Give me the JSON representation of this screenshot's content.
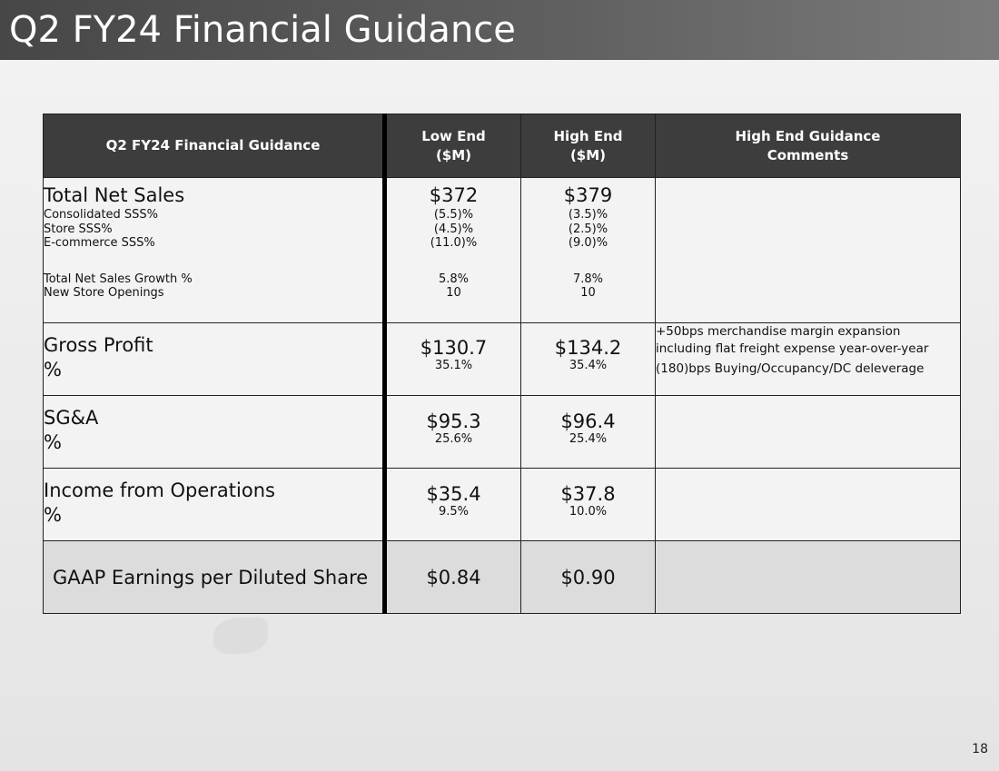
{
  "slide": {
    "title": "Q2 FY24 Financial Guidance",
    "page_number": "18"
  },
  "table": {
    "headers": {
      "metric": "Q2 FY24 Financial Guidance",
      "low_line1": "Low End",
      "low_line2": "($M)",
      "high_line1": "High End",
      "high_line2": "($M)",
      "comments_line1": "High End Guidance",
      "comments_line2": "Comments"
    },
    "net_sales": {
      "label": "Total Net Sales",
      "low": "$372",
      "high": "$379",
      "sub_rows": [
        {
          "label": "Consolidated SSS%",
          "low": "(5.5)%",
          "high": "(3.5)%"
        },
        {
          "label": "Store SSS%",
          "low": "(4.5)%",
          "high": "(2.5)%"
        },
        {
          "label": "E-commerce SSS%",
          "low": "(11.0)%",
          "high": "(9.0)%"
        },
        {
          "label": "Total Net Sales Growth %",
          "low": "5.8%",
          "high": "7.8%"
        },
        {
          "label": "New Store Openings",
          "low": "10",
          "high": "10"
        }
      ]
    },
    "gross_profit": {
      "label": "Gross Profit",
      "pct_label": "%",
      "low": "$130.7",
      "low_pct": "35.1%",
      "high": "$134.2",
      "high_pct": "35.4%",
      "comment_1": "+50bps merchandise margin expansion including flat freight expense year-over-year",
      "comment_2": "(180)bps Buying/Occupancy/DC deleverage"
    },
    "sga": {
      "label": "SG&A",
      "pct_label": "%",
      "low": "$95.3",
      "low_pct": "25.6%",
      "high": "$96.4",
      "high_pct": "25.4%"
    },
    "income_ops": {
      "label": "Income from Operations",
      "pct_label": "%",
      "low": "$35.4",
      "low_pct": "9.5%",
      "high": "$37.8",
      "high_pct": "10.0%"
    },
    "eps": {
      "label": "GAAP Earnings per Diluted Share",
      "low": "$0.84",
      "high": "$0.90"
    }
  }
}
